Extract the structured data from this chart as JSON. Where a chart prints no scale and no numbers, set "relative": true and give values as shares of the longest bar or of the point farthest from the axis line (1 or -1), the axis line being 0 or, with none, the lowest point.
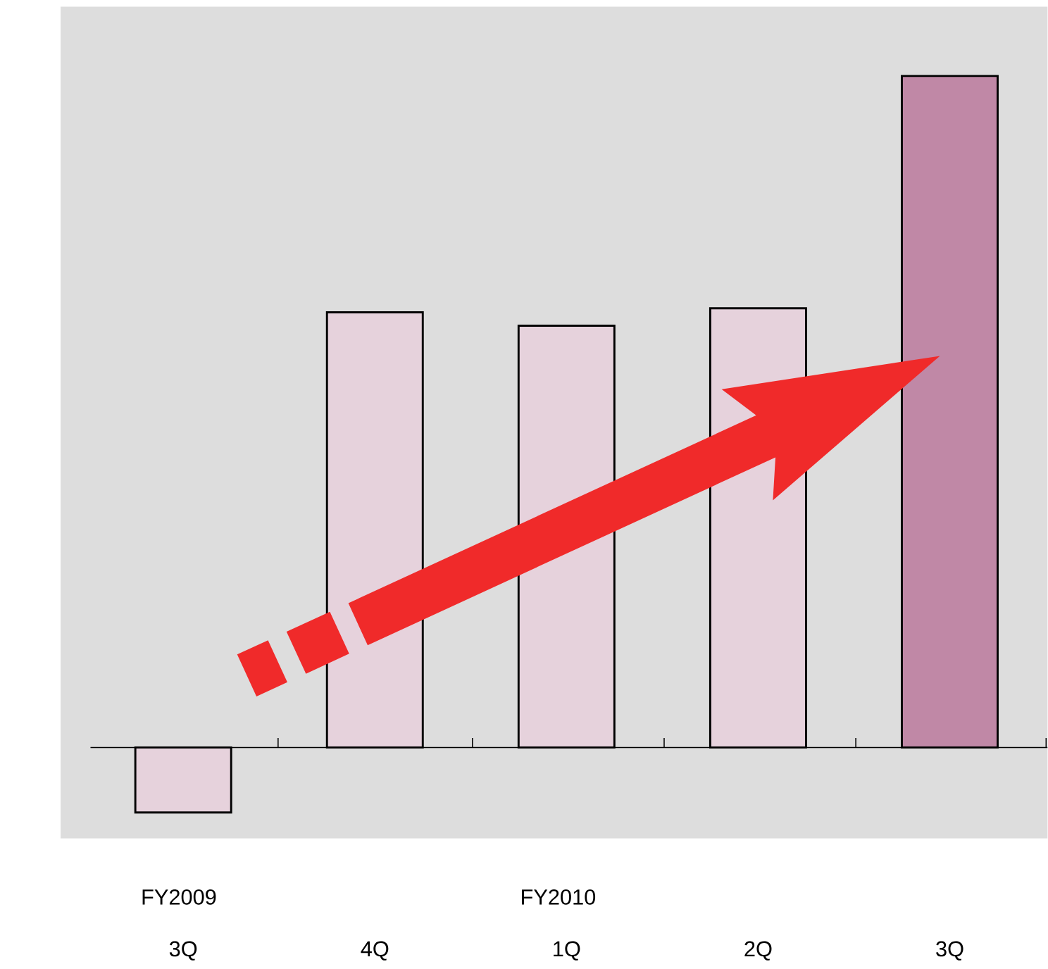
{
  "chart_data": {
    "type": "bar",
    "relative": true,
    "categories": [
      "3Q",
      "4Q",
      "1Q",
      "2Q",
      "3Q"
    ],
    "values": [
      -0.097,
      0.648,
      0.628,
      0.654,
      1
    ],
    "colors": [
      "#e6d2dc",
      "#e6d2dc",
      "#e6d2dc",
      "#e6d2dc",
      "#c088a6"
    ],
    "annotations": [
      "FY2009",
      "FY2010"
    ]
  }
}
